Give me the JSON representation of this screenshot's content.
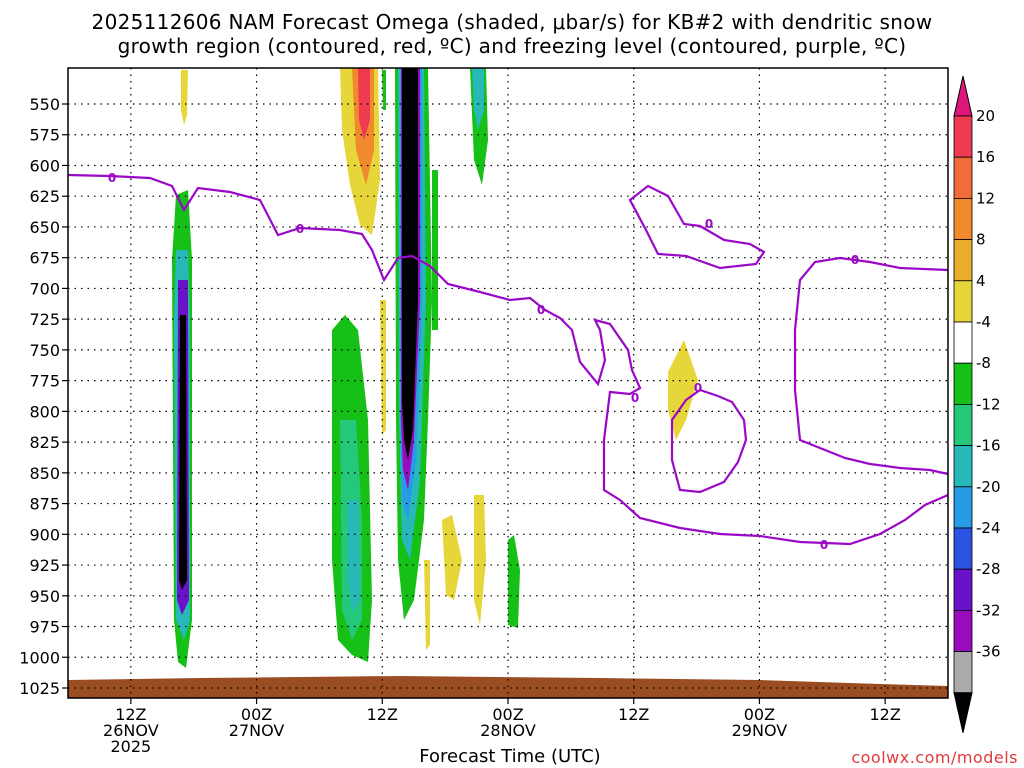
{
  "title": {
    "line1": "2025112606 NAM Forecast Omega (shaded, μbar/s) for KB#2 with dendritic snow",
    "line2": "growth region (contoured, red, ºC) and freezing level (contoured, purple, ºC)"
  },
  "xlabel": "Forecast Time (UTC)",
  "credit": "coolwx.com/models",
  "chart_data": {
    "type": "heatmap",
    "title": "2025112606 NAM Forecast Omega (shaded, μbar/s) for KB#2 with dendritic snow growth region (contoured, red, ºC) and freezing level (contoured, purple, ºC)",
    "xlabel": "Forecast Time (UTC)",
    "ylabel": "",
    "y_axis": {
      "scale": "pressure (inverted)",
      "ticks": [
        550,
        575,
        600,
        625,
        650,
        675,
        700,
        725,
        750,
        775,
        800,
        825,
        850,
        875,
        900,
        925,
        950,
        975,
        1000,
        1025
      ]
    },
    "x_axis": {
      "ticks": [
        {
          "label": "12Z",
          "sub": "26NOV",
          "sub2": "2025",
          "hour": 6
        },
        {
          "label": "00Z",
          "sub": "27NOV",
          "sub2": "",
          "hour": 18
        },
        {
          "label": "12Z",
          "sub": "",
          "sub2": "",
          "hour": 30
        },
        {
          "label": "00Z",
          "sub": "28NOV",
          "sub2": "",
          "hour": 42
        },
        {
          "label": "12Z",
          "sub": "",
          "sub2": "",
          "hour": 54
        },
        {
          "label": "00Z",
          "sub": "29NOV",
          "sub2": "",
          "hour": 66
        },
        {
          "label": "12Z",
          "sub": "",
          "sub2": "",
          "hour": 78
        }
      ],
      "range_hours": [
        0,
        84
      ]
    },
    "colorbar": {
      "labels": [
        "20",
        "16",
        "12",
        "8",
        "4",
        "-4",
        "-8",
        "-12",
        "-16",
        "-20",
        "-24",
        "-28",
        "-32",
        "-36"
      ],
      "colors": [
        "#ee3b4f",
        "#f26b3a",
        "#f08a2c",
        "#e9ad2e",
        "#e7d63a",
        "#ffffff",
        "#16c016",
        "#25c77a",
        "#27b8b8",
        "#279be6",
        "#2953e0",
        "#6a12c8",
        "#9a0bbd",
        "#aaaaaa"
      ],
      "top_arrow_color": "#e0177a",
      "bottom_arrow_color": "#000000"
    },
    "freezing_level_label": "0",
    "grid": true,
    "ground_color": "#9a4d22",
    "freezing_line_color": "#9b08c7"
  }
}
